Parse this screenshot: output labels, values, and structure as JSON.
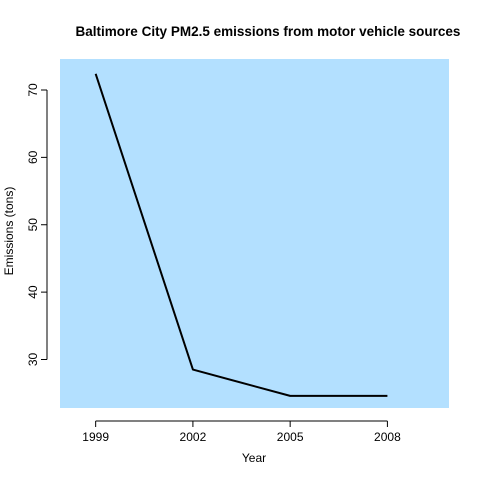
{
  "chart_data": {
    "type": "line",
    "title": "Baltimore City PM2.5 emissions from motor vehicle sources",
    "xlabel": "Year",
    "ylabel": "Emissions (tons)",
    "x": [
      1999,
      2002,
      2005,
      2008
    ],
    "x_tick_labels": [
      "1999",
      "2002",
      "2005",
      "2008"
    ],
    "y_ticks": [
      30,
      40,
      50,
      60,
      70
    ],
    "y_tick_labels": [
      "30",
      "40",
      "50",
      "60",
      "70"
    ],
    "series": [
      {
        "values": [
          72.4,
          28.5,
          24.6,
          24.6
        ]
      }
    ],
    "xlim": [
      1997.9,
      2009.9
    ],
    "ylim": [
      22.8,
      74.6
    ],
    "plot_background": "#b3e0ff",
    "line_color": "#000000",
    "grid": false,
    "legend": false
  }
}
